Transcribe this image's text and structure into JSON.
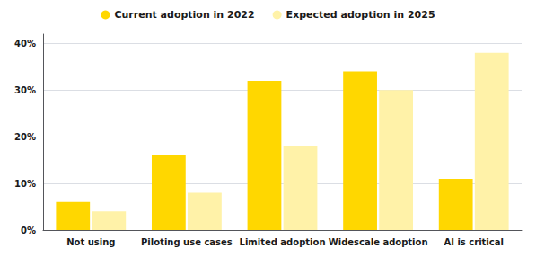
{
  "chart_data": {
    "type": "bar",
    "categories": [
      "Not using",
      "Piloting use cases",
      "Limited adoption",
      "Widescale adoption",
      "AI is critical"
    ],
    "series": [
      {
        "name": "Current adoption in 2022",
        "color": "#FFD700",
        "values": [
          6,
          16,
          32,
          34,
          11
        ]
      },
      {
        "name": "Expected adoption in 2025",
        "color": "#FFF2A8",
        "values": [
          4,
          8,
          18,
          30,
          38
        ]
      }
    ],
    "ylim": [
      0,
      42
    ],
    "yticks": [
      {
        "value": 0,
        "label": "0%"
      },
      {
        "value": 10,
        "label": "10%"
      },
      {
        "value": 20,
        "label": "20%"
      },
      {
        "value": 30,
        "label": "30%"
      },
      {
        "value": 40,
        "label": "40%"
      }
    ],
    "grid": true,
    "legend": "top"
  }
}
